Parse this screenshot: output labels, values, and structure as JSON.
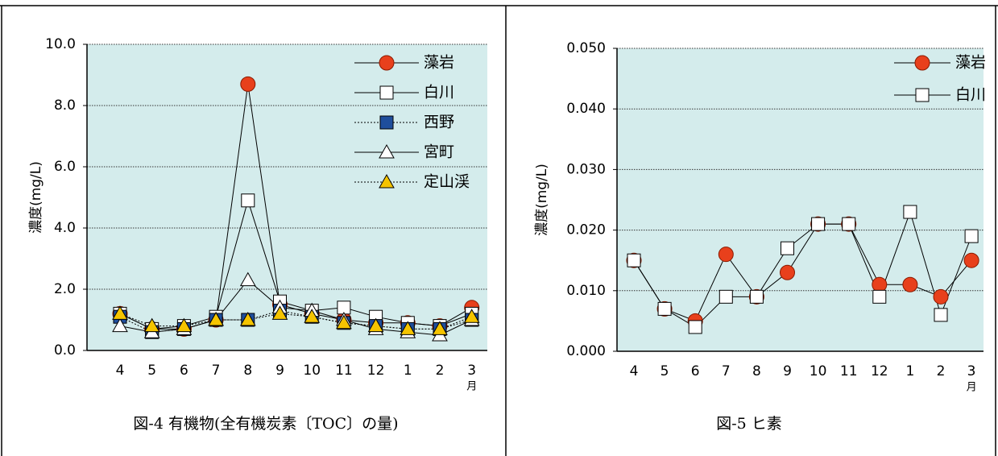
{
  "chart_data": [
    {
      "type": "line",
      "caption": "図-4 有機物(全有機炭素〔TOC〕の量)",
      "y_label": "濃度(mg/L)",
      "x_unit": "月",
      "categories": [
        "4",
        "5",
        "6",
        "7",
        "8",
        "9",
        "10",
        "11",
        "12",
        "1",
        "2",
        "3"
      ],
      "ylim": [
        0,
        10
      ],
      "yticks": [
        {
          "value": 0,
          "label": "0.0"
        },
        {
          "value": 2,
          "label": "2.0"
        },
        {
          "value": 4,
          "label": "4.0"
        },
        {
          "value": 6,
          "label": "6.0"
        },
        {
          "value": 8,
          "label": "8.0"
        },
        {
          "value": 10,
          "label": "10.0"
        }
      ],
      "grid": true,
      "background": "#d4ecec",
      "legend": "upper right",
      "series": [
        {
          "name": "藻岩",
          "color": "#e8401c",
          "marker": "circle",
          "line_style": "solid",
          "values": [
            1.2,
            0.7,
            0.7,
            1.0,
            8.7,
            1.5,
            1.2,
            1.0,
            0.9,
            0.9,
            0.8,
            1.4
          ]
        },
        {
          "name": "白川",
          "color": "#ffffff",
          "marker": "square",
          "line_style": "solid",
          "values": [
            1.2,
            0.7,
            0.8,
            1.1,
            4.9,
            1.6,
            1.3,
            1.4,
            1.1,
            0.9,
            0.8,
            1.2
          ]
        },
        {
          "name": "西野",
          "color": "#1f4e9c",
          "marker": "square",
          "line_style": "dotted",
          "values": [
            1.1,
            0.6,
            0.7,
            1.0,
            1.0,
            1.3,
            1.1,
            0.9,
            0.8,
            0.7,
            0.7,
            1.0
          ]
        },
        {
          "name": "宮町",
          "color": "#ffffff",
          "marker": "triangle",
          "line_style": "solid",
          "values": [
            0.8,
            0.6,
            0.7,
            1.0,
            2.3,
            1.4,
            1.3,
            1.0,
            0.7,
            0.6,
            0.5,
            1.0
          ]
        },
        {
          "name": "定山渓",
          "color": "#f5c400",
          "marker": "triangle",
          "line_style": "dotted",
          "values": [
            1.2,
            0.8,
            0.8,
            1.0,
            1.0,
            1.2,
            1.1,
            0.9,
            0.8,
            0.7,
            0.7,
            1.1
          ]
        }
      ]
    },
    {
      "type": "line",
      "caption": "図-5 ヒ素",
      "y_label": "濃度(mg/L)",
      "x_unit": "月",
      "categories": [
        "4",
        "5",
        "6",
        "7",
        "8",
        "9",
        "10",
        "11",
        "12",
        "1",
        "2",
        "3"
      ],
      "ylim": [
        0,
        0.05
      ],
      "yticks": [
        {
          "value": 0,
          "label": "0.000"
        },
        {
          "value": 0.01,
          "label": "0.010"
        },
        {
          "value": 0.02,
          "label": "0.020"
        },
        {
          "value": 0.03,
          "label": "0.030"
        },
        {
          "value": 0.04,
          "label": "0.040"
        },
        {
          "value": 0.05,
          "label": "0.050"
        }
      ],
      "grid": true,
      "background": "#d4ecec",
      "legend": "upper right",
      "series": [
        {
          "name": "藻岩",
          "color": "#e8401c",
          "marker": "circle",
          "line_style": "solid",
          "values": [
            0.015,
            0.007,
            0.005,
            0.016,
            0.009,
            0.013,
            0.021,
            0.021,
            0.011,
            0.011,
            0.009,
            0.015
          ]
        },
        {
          "name": "白川",
          "color": "#ffffff",
          "marker": "square",
          "line_style": "solid",
          "values": [
            0.015,
            0.007,
            0.004,
            0.009,
            0.009,
            0.017,
            0.021,
            0.021,
            0.009,
            0.023,
            0.006,
            0.019
          ]
        }
      ]
    }
  ]
}
